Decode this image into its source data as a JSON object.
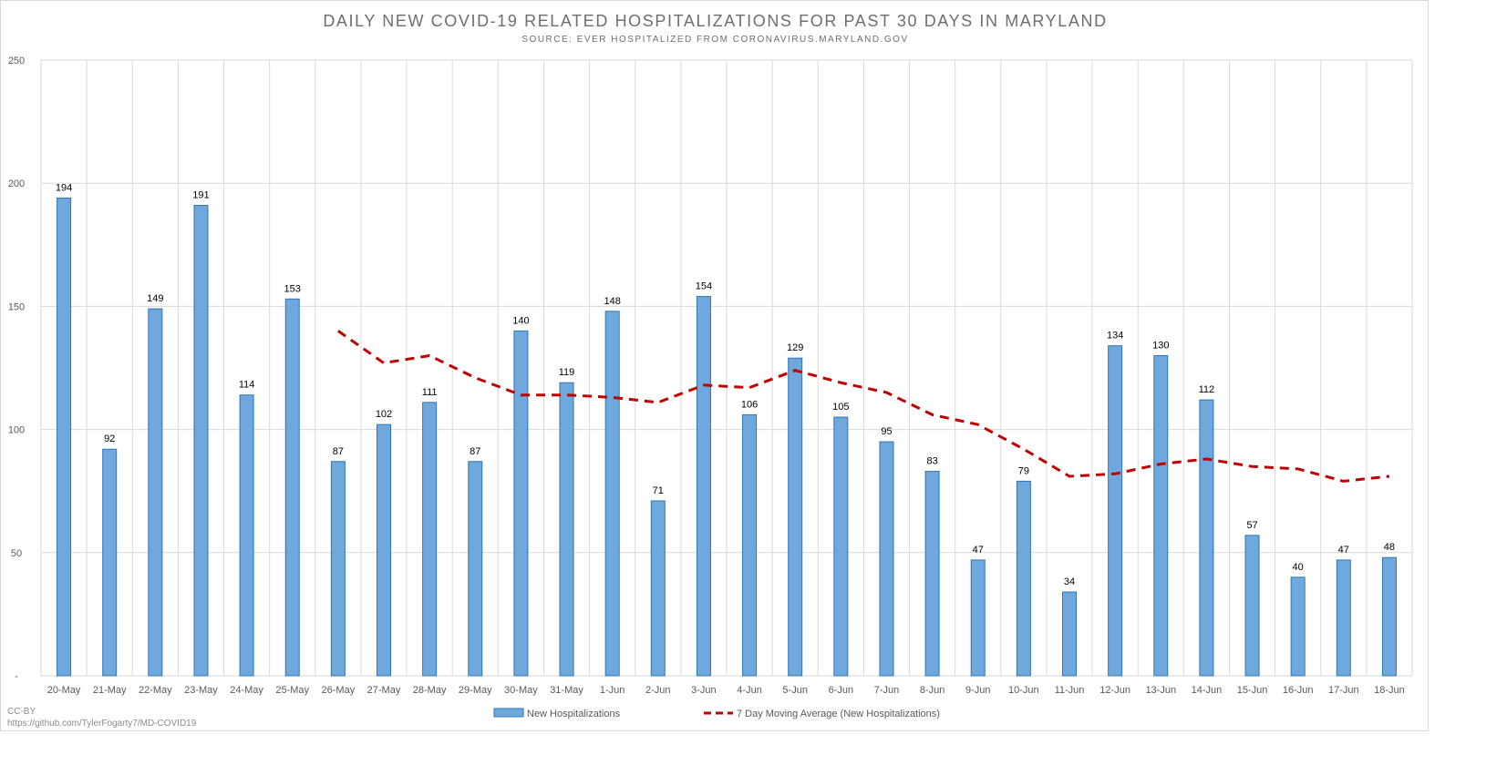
{
  "chart_data": {
    "type": "bar",
    "title": "DAILY NEW COVID-19 RELATED HOSPITALIZATIONS FOR PAST 30 DAYS IN MARYLAND",
    "subtitle": "SOURCE: EVER HOSPITALIZED FROM CORONAVIRUS.MARYLAND.GOV",
    "categories": [
      "20-May",
      "21-May",
      "22-May",
      "23-May",
      "24-May",
      "25-May",
      "26-May",
      "27-May",
      "28-May",
      "29-May",
      "30-May",
      "31-May",
      "1-Jun",
      "2-Jun",
      "3-Jun",
      "4-Jun",
      "5-Jun",
      "6-Jun",
      "7-Jun",
      "8-Jun",
      "9-Jun",
      "10-Jun",
      "11-Jun",
      "12-Jun",
      "13-Jun",
      "14-Jun",
      "15-Jun",
      "16-Jun",
      "17-Jun",
      "18-Jun"
    ],
    "series": [
      {
        "name": "New Hospitalizations",
        "type": "bar",
        "color": "#6fa8dc",
        "values": [
          194,
          92,
          149,
          191,
          114,
          153,
          87,
          102,
          111,
          87,
          140,
          119,
          148,
          71,
          154,
          106,
          129,
          105,
          95,
          83,
          47,
          79,
          34,
          134,
          130,
          112,
          57,
          40,
          47,
          48
        ]
      },
      {
        "name": "7 Day Moving Average (New Hospitalizations)",
        "type": "line",
        "style": "dashed",
        "color": "#c00000",
        "values": [
          null,
          null,
          null,
          null,
          null,
          null,
          140,
          127,
          130,
          121,
          114,
          114,
          113,
          111,
          118,
          117,
          124,
          119,
          115,
          106,
          102,
          92,
          81,
          82,
          86,
          88,
          85,
          84,
          79,
          81
        ]
      }
    ],
    "y_ticks": [
      "-",
      "50",
      "100",
      "150",
      "200",
      "250"
    ],
    "ylim": [
      0,
      250
    ],
    "grid": true,
    "legend": "bottom-center"
  },
  "credits": {
    "license": "CC-BY",
    "url": "https://github.com/TylerFogarty7/MD-COVID19"
  }
}
